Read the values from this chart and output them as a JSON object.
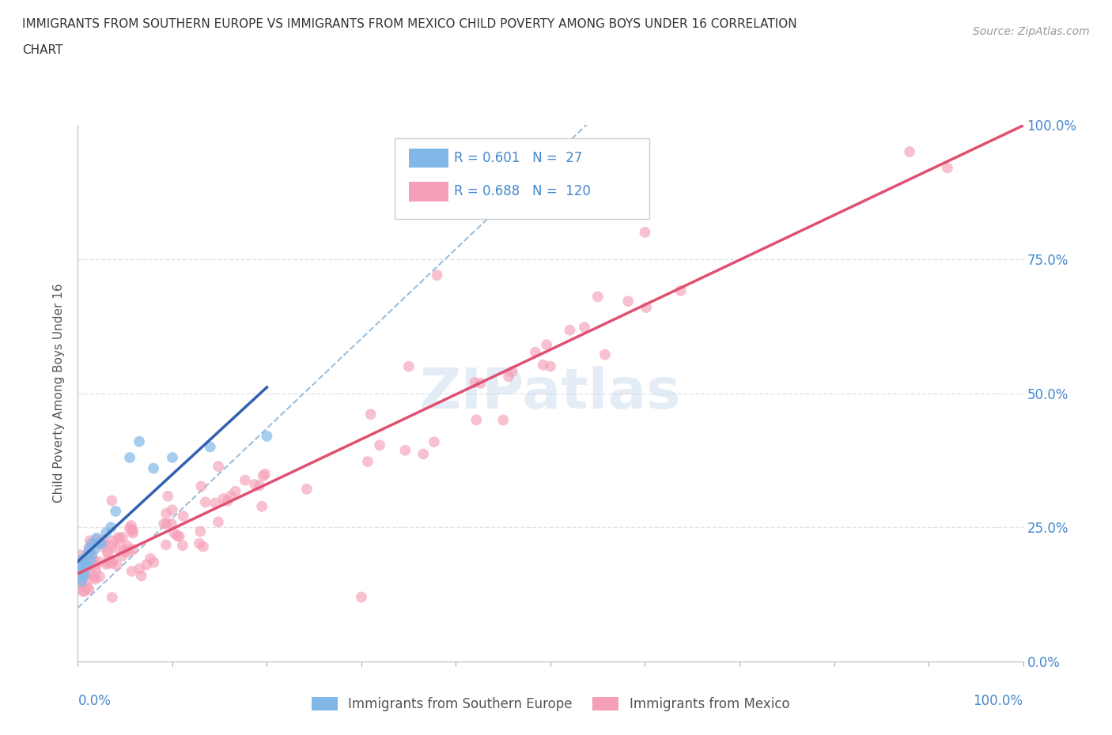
{
  "title_line1": "IMMIGRANTS FROM SOUTHERN EUROPE VS IMMIGRANTS FROM MEXICO CHILD POVERTY AMONG BOYS UNDER 16 CORRELATION",
  "title_line2": "CHART",
  "source": "Source: ZipAtlas.com",
  "ylabel": "Child Poverty Among Boys Under 16",
  "legend_R1": "0.601",
  "legend_N1": "27",
  "legend_R2": "0.688",
  "legend_N2": "120",
  "color_blue": "#82B8E8",
  "color_pink": "#F5A0B8",
  "color_blue_line": "#3060B0",
  "color_pink_line": "#E05070",
  "color_dashed": "#90B8D8",
  "color_text_blue": "#4488CC",
  "color_title": "#333333",
  "watermark": "ZIPatlas",
  "grid_color": "#DDDDDD",
  "xlim": [
    0.0,
    1.0
  ],
  "ylim": [
    0.0,
    1.0
  ]
}
